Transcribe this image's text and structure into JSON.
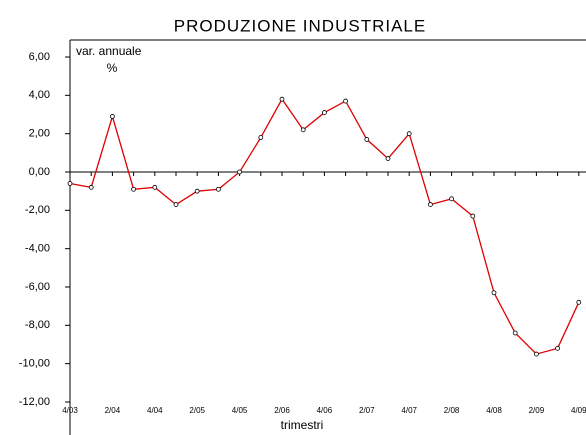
{
  "chart_data": {
    "type": "line",
    "title": "PRODUZIONE INDUSTRIALE",
    "ylabel": [
      "var. annuale",
      "%"
    ],
    "xlabel": "trimestri",
    "categories": [
      "4/03",
      null,
      "2/04",
      null,
      "4/04",
      null,
      "2/05",
      null,
      "4/05",
      null,
      "2/06",
      null,
      "4/06",
      null,
      "2/07",
      null,
      "4/07",
      null,
      "2/08",
      null,
      "4/08",
      null,
      "2/09",
      null,
      "4/09"
    ],
    "series": [
      {
        "name": "PRODUZIONE INDUSTRIALE",
        "color": "#e00000",
        "values": [
          -0.6,
          -0.8,
          2.9,
          -0.9,
          -0.8,
          -1.7,
          -1.0,
          -0.9,
          0.0,
          1.8,
          3.8,
          2.2,
          3.1,
          3.7,
          1.7,
          0.7,
          2.0,
          -1.7,
          -1.4,
          -2.3,
          -6.3,
          -8.4,
          -9.5,
          -9.2,
          -6.8
        ]
      }
    ],
    "ylim": [
      -12,
      6
    ],
    "yticks": [
      {
        "value": -12,
        "label": "-12,00"
      },
      {
        "value": -10,
        "label": "-10,00"
      },
      {
        "value": -8,
        "label": "-8,00"
      },
      {
        "value": -6,
        "label": "-6,00"
      },
      {
        "value": -4,
        "label": "-4,00"
      },
      {
        "value": -2,
        "label": "-2,00"
      },
      {
        "value": 0,
        "label": "0,00"
      },
      {
        "value": 2,
        "label": "2,00"
      },
      {
        "value": 4,
        "label": "4,00"
      },
      {
        "value": 6,
        "label": "6,00"
      }
    ],
    "grid": false
  }
}
